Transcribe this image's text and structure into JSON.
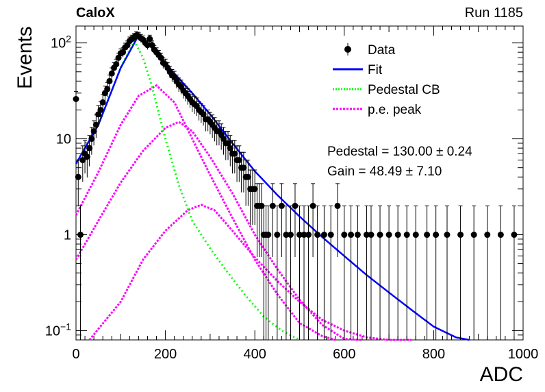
{
  "header": {
    "experiment": "CaloX",
    "run": "Run 1185"
  },
  "stats": {
    "pedestal": "Pedestal = 130.00 ± 0.24",
    "gain": "Gain = 48.49 ± 7.10"
  },
  "colors": {
    "data": "#000000",
    "fit": "#0000ff",
    "pedestal_cb": "#00ff00",
    "pe_peak": "#ff00ff"
  },
  "chart_data": {
    "type": "scatter",
    "title": "",
    "xlabel": "ADC",
    "ylabel": "Events",
    "xlim": [
      0,
      1000
    ],
    "ylim": [
      0.08,
      150
    ],
    "yscale": "log",
    "grid": false,
    "legend_position": "top-right",
    "x_ticks": [
      "0",
      "200",
      "400",
      "600",
      "800",
      "1000"
    ],
    "y_ticks": [
      {
        "value": 0.1,
        "label": "10",
        "sup": "−1"
      },
      {
        "value": 1,
        "label": "1",
        "sup": ""
      },
      {
        "value": 10,
        "label": "10",
        "sup": ""
      },
      {
        "value": 100,
        "label": "10",
        "sup": "2"
      }
    ],
    "legend": [
      {
        "name": "Data",
        "style": "marker"
      },
      {
        "name": "Fit",
        "style": "solid"
      },
      {
        "name": "Pedestal CB",
        "style": "dotted-green"
      },
      {
        "name": "p.e. peak",
        "style": "dotted-magenta"
      }
    ],
    "data_points": [
      [
        0,
        26
      ],
      [
        5,
        4
      ],
      [
        10,
        1
      ],
      [
        15,
        6
      ],
      [
        20,
        7
      ],
      [
        25,
        6.5
      ],
      [
        30,
        8
      ],
      [
        35,
        10
      ],
      [
        40,
        12
      ],
      [
        45,
        14
      ],
      [
        50,
        18
      ],
      [
        55,
        20
      ],
      [
        60,
        24
      ],
      [
        65,
        30
      ],
      [
        70,
        33
      ],
      [
        75,
        40
      ],
      [
        80,
        48
      ],
      [
        85,
        55
      ],
      [
        90,
        60
      ],
      [
        95,
        70
      ],
      [
        100,
        78
      ],
      [
        105,
        80
      ],
      [
        110,
        90
      ],
      [
        115,
        95
      ],
      [
        120,
        105
      ],
      [
        125,
        110
      ],
      [
        130,
        115
      ],
      [
        135,
        120
      ],
      [
        140,
        118
      ],
      [
        145,
        112
      ],
      [
        150,
        108
      ],
      [
        155,
        100
      ],
      [
        160,
        95
      ],
      [
        165,
        110
      ],
      [
        170,
        95
      ],
      [
        175,
        85
      ],
      [
        180,
        80
      ],
      [
        185,
        75
      ],
      [
        190,
        70
      ],
      [
        195,
        62
      ],
      [
        200,
        60
      ],
      [
        205,
        55
      ],
      [
        210,
        50
      ],
      [
        215,
        46
      ],
      [
        220,
        44
      ],
      [
        225,
        40
      ],
      [
        230,
        37
      ],
      [
        235,
        35
      ],
      [
        240,
        32
      ],
      [
        245,
        30
      ],
      [
        250,
        28
      ],
      [
        255,
        26
      ],
      [
        260,
        24
      ],
      [
        265,
        23
      ],
      [
        270,
        22
      ],
      [
        275,
        20
      ],
      [
        280,
        19
      ],
      [
        285,
        18
      ],
      [
        290,
        16
      ],
      [
        295,
        16
      ],
      [
        300,
        15
      ],
      [
        305,
        14
      ],
      [
        310,
        13
      ],
      [
        315,
        12
      ],
      [
        320,
        12
      ],
      [
        325,
        11
      ],
      [
        330,
        10
      ],
      [
        335,
        9
      ],
      [
        340,
        9
      ],
      [
        345,
        8
      ],
      [
        350,
        7
      ],
      [
        355,
        7
      ],
      [
        360,
        6
      ],
      [
        365,
        6
      ],
      [
        370,
        5
      ],
      [
        375,
        5
      ],
      [
        380,
        4
      ],
      [
        385,
        4
      ],
      [
        390,
        3
      ],
      [
        395,
        3
      ],
      [
        400,
        3
      ],
      [
        405,
        2
      ],
      [
        410,
        2
      ],
      [
        415,
        2
      ],
      [
        420,
        1
      ],
      [
        425,
        1
      ],
      [
        430,
        1
      ],
      [
        440,
        2
      ],
      [
        450,
        1
      ],
      [
        460,
        2
      ],
      [
        470,
        1
      ],
      [
        480,
        1
      ],
      [
        490,
        2
      ],
      [
        500,
        1
      ],
      [
        510,
        1
      ],
      [
        520,
        1
      ],
      [
        530,
        2
      ],
      [
        540,
        1
      ],
      [
        555,
        1
      ],
      [
        570,
        1
      ],
      [
        585,
        2
      ],
      [
        600,
        1
      ],
      [
        615,
        1
      ],
      [
        630,
        1
      ],
      [
        650,
        1
      ],
      [
        660,
        1
      ],
      [
        680,
        1
      ],
      [
        700,
        1
      ],
      [
        720,
        1
      ],
      [
        740,
        1
      ],
      [
        760,
        1
      ],
      [
        785,
        1
      ],
      [
        805,
        1
      ],
      [
        830,
        1
      ],
      [
        860,
        1
      ],
      [
        890,
        1
      ],
      [
        920,
        1
      ],
      [
        950,
        1
      ],
      [
        980,
        1
      ]
    ],
    "fit": {
      "x": [
        0,
        50,
        100,
        140,
        180,
        220,
        260,
        300,
        350,
        400,
        450,
        500,
        550,
        600,
        650,
        700,
        750,
        800,
        850,
        880
      ],
      "y": [
        5.5,
        14,
        55,
        120,
        80,
        48,
        30,
        18,
        9,
        4.6,
        2.6,
        1.55,
        0.95,
        0.6,
        0.38,
        0.25,
        0.165,
        0.11,
        0.085,
        0.075
      ]
    },
    "pedestal_cb": {
      "x": [
        0,
        50,
        100,
        130,
        150,
        170,
        200,
        230,
        260,
        300,
        340,
        380,
        420,
        460,
        500
      ],
      "y": [
        5.5,
        14,
        55,
        105,
        70,
        35,
        10,
        3.3,
        1.4,
        0.72,
        0.4,
        0.23,
        0.14,
        0.1,
        0.08
      ]
    },
    "pe_peaks": [
      {
        "x": [
          0,
          50,
          100,
          140,
          180,
          220,
          260,
          300,
          350,
          400,
          450,
          500,
          550,
          580
        ],
        "y": [
          1.6,
          4.5,
          14,
          28,
          36,
          24,
          10,
          4.2,
          1.5,
          0.55,
          0.24,
          0.12,
          0.088,
          0.08
        ]
      },
      {
        "x": [
          0,
          50,
          100,
          150,
          200,
          230,
          260,
          300,
          350,
          400,
          450,
          500,
          550,
          600,
          640
        ],
        "y": [
          0.55,
          1.4,
          3.5,
          7.5,
          13,
          15,
          12,
          6.5,
          2.7,
          1.0,
          0.44,
          0.21,
          0.115,
          0.082,
          0.075
        ]
      },
      {
        "x": [
          30,
          100,
          150,
          200,
          250,
          280,
          310,
          350,
          400,
          450,
          500,
          550,
          600,
          650,
          700,
          750
        ],
        "y": [
          0.08,
          0.2,
          0.55,
          1.1,
          1.8,
          2.05,
          1.8,
          1.1,
          0.58,
          0.33,
          0.2,
          0.13,
          0.1,
          0.085,
          0.08,
          0.075
        ]
      }
    ]
  }
}
